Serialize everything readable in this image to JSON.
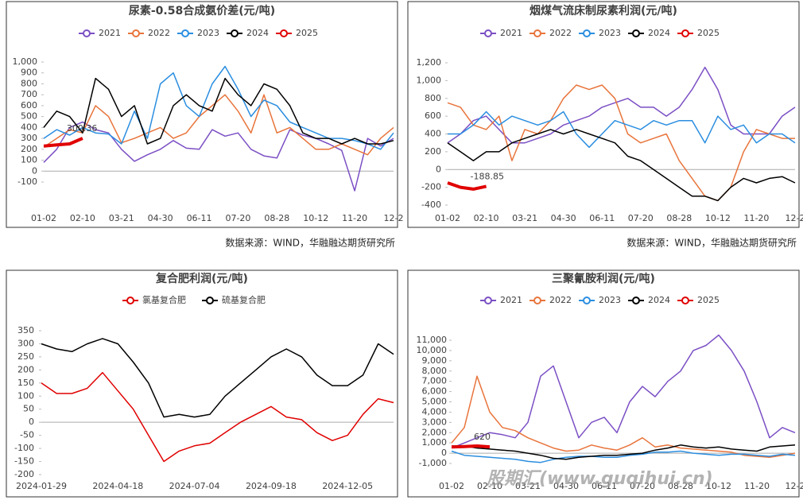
{
  "chart_data": [
    {
      "type": "line",
      "title": "尿素-0.58合成氨价差(元/吨)",
      "categories": [
        "01-02",
        null,
        null,
        "02-10",
        null,
        null,
        "03-21",
        null,
        null,
        "04-30",
        null,
        null,
        "06-11",
        null,
        null,
        "07-20",
        null,
        null,
        "08-28",
        null,
        null,
        "10-12",
        null,
        null,
        "11-20",
        null,
        null,
        "12-2"
      ],
      "ylim": [
        -100,
        1000
      ],
      "yticks": [
        -100,
        0,
        100,
        200,
        300,
        400,
        500,
        600,
        700,
        800,
        900,
        {
          "value": 1000,
          "label": "1,000"
        }
      ],
      "series": [
        {
          "name": "2021",
          "color": "#7b4fc4",
          "values": [
            80,
            200,
            400,
            450,
            380,
            350,
            200,
            90,
            150,
            200,
            280,
            210,
            200,
            380,
            320,
            350,
            200,
            140,
            120,
            380,
            330,
            300,
            250,
            190,
            -180,
            300,
            230,
            300
          ]
        },
        {
          "name": "2022",
          "color": "#e8743b",
          "values": [
            220,
            300,
            380,
            350,
            600,
            500,
            260,
            300,
            350,
            400,
            300,
            350,
            500,
            600,
            700,
            550,
            350,
            700,
            350,
            400,
            300,
            200,
            200,
            250,
            200,
            150,
            300,
            400
          ]
        },
        {
          "name": "2023",
          "color": "#2b8ee0",
          "values": [
            300,
            380,
            330,
            400,
            350,
            340,
            250,
            550,
            300,
            800,
            900,
            600,
            500,
            800,
            960,
            750,
            500,
            650,
            600,
            450,
            400,
            350,
            300,
            300,
            280,
            250,
            200,
            350
          ]
        },
        {
          "name": "2024",
          "color": "#000000",
          "values": [
            400,
            550,
            500,
            350,
            850,
            750,
            500,
            600,
            250,
            300,
            600,
            700,
            600,
            550,
            850,
            700,
            600,
            800,
            750,
            600,
            350,
            300,
            300,
            250,
            300,
            250,
            250,
            280
          ]
        },
        {
          "name": "2025",
          "color": "#e00000",
          "label_last": true,
          "values": [
            230,
            240,
            250,
            300.36,
            null,
            null,
            null,
            null,
            null,
            null,
            null,
            null,
            null,
            null,
            null,
            null,
            null,
            null,
            null,
            null,
            null,
            null,
            null,
            null,
            null,
            null,
            null,
            null
          ]
        }
      ]
    },
    {
      "type": "line",
      "title": "烟煤气流床制尿素利润(元/吨)",
      "categories": [
        "01-02",
        null,
        null,
        "02-10",
        null,
        null,
        "03-21",
        null,
        null,
        "04-30",
        null,
        null,
        "06-11",
        null,
        null,
        "07-20",
        null,
        null,
        "08-28",
        null,
        null,
        "10-12",
        null,
        null,
        "11-20",
        null,
        null,
        "12-2"
      ],
      "ylim": [
        -400,
        1200
      ],
      "yticks": [
        -400,
        -200,
        0,
        200,
        400,
        600,
        800,
        {
          "value": 1000,
          "label": "1,000"
        },
        {
          "value": 1200,
          "label": "1,200"
        }
      ],
      "series": [
        {
          "name": "2021",
          "color": "#7b4fc4",
          "values": [
            300,
            400,
            550,
            600,
            450,
            300,
            300,
            350,
            400,
            500,
            550,
            600,
            700,
            750,
            800,
            700,
            700,
            600,
            700,
            900,
            1150,
            900,
            500,
            400,
            400,
            400,
            600,
            700
          ]
        },
        {
          "name": "2022",
          "color": "#e8743b",
          "values": [
            750,
            700,
            500,
            450,
            600,
            100,
            450,
            400,
            550,
            800,
            950,
            900,
            950,
            800,
            400,
            300,
            350,
            400,
            100,
            -100,
            -300,
            -350,
            -200,
            200,
            450,
            400,
            350,
            350
          ]
        },
        {
          "name": "2023",
          "color": "#2b8ee0",
          "values": [
            400,
            400,
            500,
            650,
            500,
            600,
            550,
            500,
            550,
            650,
            400,
            250,
            400,
            550,
            500,
            450,
            550,
            500,
            550,
            550,
            300,
            600,
            450,
            500,
            300,
            400,
            400,
            300
          ]
        },
        {
          "name": "2024",
          "color": "#000000",
          "values": [
            300,
            200,
            100,
            200,
            200,
            300,
            350,
            400,
            450,
            400,
            450,
            400,
            350,
            300,
            150,
            100,
            0,
            -100,
            -200,
            -300,
            -300,
            -350,
            -200,
            -100,
            -150,
            -100,
            -80,
            -150
          ]
        },
        {
          "name": "2025",
          "color": "#e00000",
          "label_last": true,
          "values": [
            -150,
            -200,
            -220,
            -188.85,
            null,
            null,
            null,
            null,
            null,
            null,
            null,
            null,
            null,
            null,
            null,
            null,
            null,
            null,
            null,
            null,
            null,
            null,
            null,
            null,
            null,
            null,
            null,
            null
          ]
        }
      ]
    },
    {
      "type": "line",
      "title": "复合肥利润(元/吨)",
      "categories": [
        "2024-01-29",
        null,
        null,
        null,
        null,
        "2024-04-18",
        null,
        null,
        null,
        null,
        "2024-07-04",
        null,
        null,
        null,
        null,
        "2024-09-18",
        null,
        null,
        null,
        null,
        "2024-12-05",
        null,
        null,
        null
      ],
      "ylim": [
        -200,
        350
      ],
      "yticks": [
        -200,
        -150,
        -100,
        -50,
        0,
        50,
        100,
        150,
        200,
        250,
        300,
        350
      ],
      "series": [
        {
          "name": "氯基复合肥",
          "color": "#e00000",
          "values": [
            150,
            110,
            110,
            130,
            190,
            120,
            50,
            -50,
            -150,
            -110,
            -90,
            -80,
            -40,
            0,
            30,
            60,
            20,
            10,
            -40,
            -70,
            -50,
            30,
            90,
            75
          ]
        },
        {
          "name": "硫基复合肥",
          "color": "#000000",
          "values": [
            300,
            280,
            270,
            300,
            320,
            300,
            230,
            150,
            20,
            30,
            20,
            30,
            100,
            150,
            200,
            250,
            280,
            250,
            180,
            140,
            140,
            180,
            300,
            260
          ]
        }
      ]
    },
    {
      "type": "line",
      "title": "三聚氰胺利润(元/吨)",
      "categories": [
        "01-02",
        null,
        null,
        "02-10",
        null,
        null,
        "03-21",
        null,
        null,
        "04-30",
        null,
        null,
        "06-11",
        null,
        null,
        "07-20",
        null,
        null,
        "08-28",
        null,
        null,
        "10-12",
        null,
        null,
        "11-20",
        null,
        null,
        "12-2"
      ],
      "ylim": [
        -1000,
        11000
      ],
      "yticks": [
        {
          "value": -1000,
          "label": "-1,000"
        },
        0,
        {
          "value": 1000,
          "label": "1,000"
        },
        {
          "value": 2000,
          "label": "2,000"
        },
        {
          "value": 3000,
          "label": "3,000"
        },
        {
          "value": 4000,
          "label": "4,000"
        },
        {
          "value": 5000,
          "label": "5,000"
        },
        {
          "value": 6000,
          "label": "6,000"
        },
        {
          "value": 7000,
          "label": "7,000"
        },
        {
          "value": 8000,
          "label": "8,000"
        },
        {
          "value": 9000,
          "label": "9,000"
        },
        {
          "value": 10000,
          "label": "10,000"
        },
        {
          "value": 11000,
          "label": "11,000"
        }
      ],
      "series": [
        {
          "name": "2021",
          "color": "#7b4fc4",
          "values": [
            500,
            1000,
            1500,
            2000,
            1800,
            1500,
            3000,
            7500,
            8500,
            5000,
            1500,
            3000,
            3500,
            2000,
            5000,
            6500,
            5500,
            7000,
            8000,
            10000,
            10500,
            11500,
            10000,
            8000,
            5000,
            1500,
            2500,
            2000
          ]
        },
        {
          "name": "2022",
          "color": "#e8743b",
          "values": [
            1000,
            2500,
            7500,
            4000,
            2500,
            2200,
            1500,
            1000,
            500,
            200,
            300,
            800,
            500,
            300,
            800,
            1500,
            600,
            800,
            500,
            400,
            300,
            200,
            100,
            -200,
            -300,
            -400,
            -200,
            0
          ]
        },
        {
          "name": "2023",
          "color": "#2b8ee0",
          "values": [
            200,
            -200,
            -300,
            -400,
            -500,
            -600,
            -800,
            -900,
            -600,
            -400,
            -300,
            -300,
            -400,
            -400,
            -200,
            -100,
            100,
            100,
            200,
            0,
            -100,
            -200,
            -100,
            -100,
            -200,
            -300,
            -100,
            -200
          ]
        },
        {
          "name": "2024",
          "color": "#000000",
          "values": [
            700,
            700,
            500,
            400,
            300,
            200,
            0,
            -200,
            -500,
            -600,
            -400,
            -300,
            -200,
            -200,
            -100,
            0,
            300,
            500,
            800,
            600,
            500,
            600,
            400,
            300,
            200,
            600,
            700,
            800
          ]
        },
        {
          "name": "2025",
          "color": "#e00000",
          "label_last": true,
          "values": [
            600,
            650,
            700,
            620,
            null,
            null,
            null,
            null,
            null,
            null,
            null,
            null,
            null,
            null,
            null,
            null,
            null,
            null,
            null,
            null,
            null,
            null,
            null,
            null,
            null,
            null,
            null,
            null
          ]
        }
      ]
    }
  ],
  "sources": [
    "数据来源：WIND，华融融达期货研究所",
    "数据来源：WIND，华融融达期货研究所"
  ],
  "watermark": "股期汇(www.guqihui.cn)"
}
